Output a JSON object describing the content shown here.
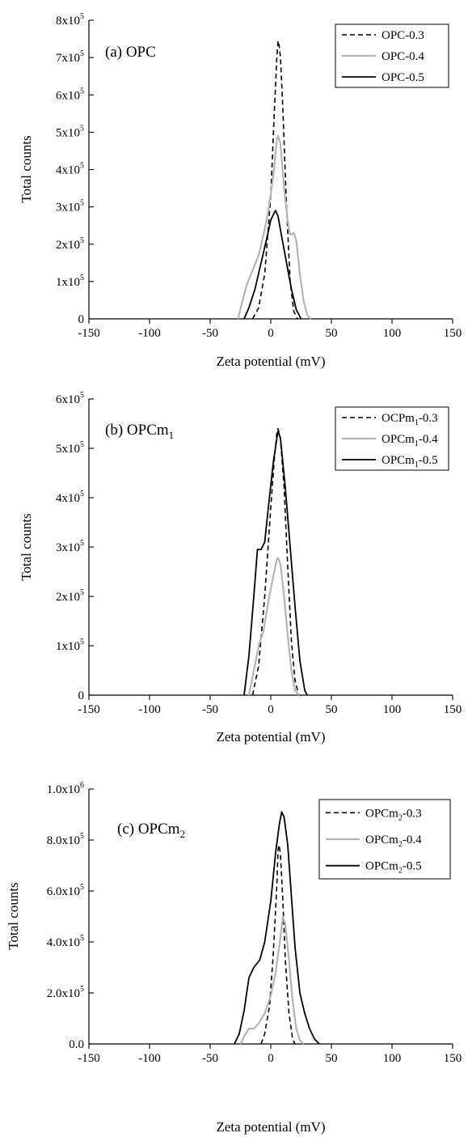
{
  "colors": {
    "dashed": "#000000",
    "gray": "#b4b4b4",
    "solid": "#000000",
    "axis": "#000000"
  },
  "chart_data": [
    {
      "type": "line",
      "panel_label": "(a) OPC",
      "panel_base": "(a) OPC",
      "panel_sub": "",
      "xlabel": "Zeta potential (mV)",
      "ylabel": "Total counts",
      "xlim": [
        -150,
        150
      ],
      "ylim": [
        0,
        800000
      ],
      "x_ticks": [
        -150,
        -100,
        -50,
        0,
        50,
        100,
        150
      ],
      "x_tick_labels": [
        "-150",
        "-100",
        "-50",
        "0",
        "50",
        "100",
        "150"
      ],
      "y_ticks": [
        0,
        100000,
        200000,
        300000,
        400000,
        500000,
        600000,
        700000,
        800000
      ],
      "y_tick_labels": [
        {
          "base": "0",
          "exp": ""
        },
        {
          "base": "1x10",
          "exp": "5"
        },
        {
          "base": "2x10",
          "exp": "5"
        },
        {
          "base": "3x10",
          "exp": "5"
        },
        {
          "base": "4x10",
          "exp": "5"
        },
        {
          "base": "5x10",
          "exp": "5"
        },
        {
          "base": "6x10",
          "exp": "5"
        },
        {
          "base": "7x10",
          "exp": "5"
        },
        {
          "base": "8x10",
          "exp": "5"
        }
      ],
      "legend_position": "top-right",
      "series": [
        {
          "name": "OPC-0.3",
          "name_base": "OPC",
          "name_sub": "",
          "name_suffix": "-0.3",
          "style": "dashed",
          "points": [
            [
              -15,
              0
            ],
            [
              -10,
              30000
            ],
            [
              -5,
              120000
            ],
            [
              0,
              330000
            ],
            [
              3,
              560000
            ],
            [
              5,
              700000
            ],
            [
              6,
              745000
            ],
            [
              7,
              730000
            ],
            [
              8,
              700000
            ],
            [
              10,
              560000
            ],
            [
              13,
              300000
            ],
            [
              16,
              100000
            ],
            [
              19,
              20000
            ],
            [
              22,
              0
            ]
          ]
        },
        {
          "name": "OPC-0.4",
          "name_base": "OPC",
          "name_sub": "",
          "name_suffix": "-0.4",
          "style": "gray",
          "points": [
            [
              -27,
              0
            ],
            [
              -24,
              40000
            ],
            [
              -20,
              90000
            ],
            [
              -15,
              130000
            ],
            [
              -10,
              170000
            ],
            [
              -5,
              240000
            ],
            [
              -2,
              290000
            ],
            [
              2,
              380000
            ],
            [
              5,
              480000
            ],
            [
              6,
              490000
            ],
            [
              8,
              470000
            ],
            [
              11,
              350000
            ],
            [
              14,
              260000
            ],
            [
              16,
              225000
            ],
            [
              19,
              230000
            ],
            [
              21,
              210000
            ],
            [
              24,
              120000
            ],
            [
              27,
              50000
            ],
            [
              30,
              10000
            ],
            [
              33,
              0
            ]
          ]
        },
        {
          "name": "OPC-0.5",
          "name_base": "OPC",
          "name_sub": "",
          "name_suffix": "-0.5",
          "style": "solid",
          "points": [
            [
              -22,
              0
            ],
            [
              -18,
              30000
            ],
            [
              -13,
              80000
            ],
            [
              -8,
              150000
            ],
            [
              -3,
              220000
            ],
            [
              0,
              265000
            ],
            [
              3,
              285000
            ],
            [
              4,
              290000
            ],
            [
              6,
              275000
            ],
            [
              9,
              220000
            ],
            [
              13,
              150000
            ],
            [
              17,
              80000
            ],
            [
              21,
              25000
            ],
            [
              25,
              0
            ]
          ]
        }
      ]
    },
    {
      "type": "line",
      "panel_label": "(b) OPCm1",
      "panel_base": "(b) OPCm",
      "panel_sub": "1",
      "xlabel": "Zeta potential (mV)",
      "ylabel": "Total counts",
      "xlim": [
        -150,
        150
      ],
      "ylim": [
        0,
        600000
      ],
      "x_ticks": [
        -150,
        -100,
        -50,
        0,
        50,
        100,
        150
      ],
      "x_tick_labels": [
        "-150",
        "-100",
        "-50",
        "0",
        "50",
        "100",
        "150"
      ],
      "y_ticks": [
        0,
        100000,
        200000,
        300000,
        400000,
        500000,
        600000
      ],
      "y_tick_labels": [
        {
          "base": "0",
          "exp": ""
        },
        {
          "base": "1x10",
          "exp": "5"
        },
        {
          "base": "2x10",
          "exp": "5"
        },
        {
          "base": "3x10",
          "exp": "5"
        },
        {
          "base": "4x10",
          "exp": "5"
        },
        {
          "base": "5x10",
          "exp": "5"
        },
        {
          "base": "6x10",
          "exp": "5"
        }
      ],
      "legend_position": "top-right",
      "series": [
        {
          "name": "OCPm1-0.3",
          "name_base": "OCPm",
          "name_sub": "1",
          "name_suffix": "-0.3",
          "style": "dashed",
          "points": [
            [
              -15,
              0
            ],
            [
              -10,
              60000
            ],
            [
              -5,
              200000
            ],
            [
              0,
              380000
            ],
            [
              3,
              480000
            ],
            [
              5,
              530000
            ],
            [
              6,
              540000
            ],
            [
              8,
              520000
            ],
            [
              11,
              420000
            ],
            [
              14,
              260000
            ],
            [
              17,
              110000
            ],
            [
              20,
              30000
            ],
            [
              23,
              0
            ]
          ]
        },
        {
          "name": "OPCm1-0.4",
          "name_base": "OPCm",
          "name_sub": "1",
          "name_suffix": "-0.4",
          "style": "gray",
          "points": [
            [
              -18,
              0
            ],
            [
              -14,
              50000
            ],
            [
              -10,
              100000
            ],
            [
              -6,
              130000
            ],
            [
              -2,
              190000
            ],
            [
              2,
              240000
            ],
            [
              5,
              275000
            ],
            [
              6,
              278000
            ],
            [
              8,
              265000
            ],
            [
              11,
              200000
            ],
            [
              14,
              120000
            ],
            [
              17,
              50000
            ],
            [
              20,
              10000
            ],
            [
              23,
              0
            ]
          ]
        },
        {
          "name": "OPCm1-0.5",
          "name_base": "OPCm",
          "name_sub": "1",
          "name_suffix": "-0.5",
          "style": "solid",
          "points": [
            [
              -22,
              0
            ],
            [
              -18,
              80000
            ],
            [
              -14,
              200000
            ],
            [
              -11,
              295000
            ],
            [
              -8,
              295000
            ],
            [
              -5,
              310000
            ],
            [
              -2,
              380000
            ],
            [
              2,
              470000
            ],
            [
              5,
              520000
            ],
            [
              6,
              535000
            ],
            [
              8,
              520000
            ],
            [
              12,
              420000
            ],
            [
              16,
              300000
            ],
            [
              20,
              180000
            ],
            [
              24,
              70000
            ],
            [
              28,
              10000
            ],
            [
              30,
              0
            ]
          ]
        }
      ]
    },
    {
      "type": "line",
      "panel_label": "(c) OPCm2",
      "panel_base": "(c) OPCm",
      "panel_sub": "2",
      "xlabel": "Zeta potential (mV)",
      "ylabel": "Total counts",
      "xlim": [
        -150,
        150
      ],
      "ylim": [
        0,
        1000000
      ],
      "x_ticks": [
        -150,
        -100,
        -50,
        0,
        50,
        100,
        150
      ],
      "x_tick_labels": [
        "-150",
        "-100",
        "-50",
        "0",
        "50",
        "100",
        "150"
      ],
      "y_ticks": [
        0,
        200000,
        400000,
        600000,
        800000,
        1000000
      ],
      "y_tick_labels": [
        {
          "base": "0.0",
          "exp": ""
        },
        {
          "base": "2.0x10",
          "exp": "5"
        },
        {
          "base": "4.0x10",
          "exp": "5"
        },
        {
          "base": "6.0x10",
          "exp": "5"
        },
        {
          "base": "8.0x10",
          "exp": "5"
        },
        {
          "base": "1.0x10",
          "exp": "6"
        }
      ],
      "legend_position": "top-right",
      "series": [
        {
          "name": "OPCm2-0.3",
          "name_base": "OPCm",
          "name_sub": "2",
          "name_suffix": "-0.3",
          "style": "dashed",
          "points": [
            [
              -8,
              0
            ],
            [
              -5,
              40000
            ],
            [
              -1,
              150000
            ],
            [
              2,
              350000
            ],
            [
              5,
              620000
            ],
            [
              6,
              760000
            ],
            [
              7,
              780000
            ],
            [
              8,
              740000
            ],
            [
              10,
              560000
            ],
            [
              12,
              330000
            ],
            [
              15,
              120000
            ],
            [
              18,
              20000
            ],
            [
              20,
              0
            ]
          ]
        },
        {
          "name": "OPCm2-0.4",
          "name_base": "OPCm",
          "name_sub": "2",
          "name_suffix": "-0.4",
          "style": "gray",
          "points": [
            [
              -25,
              0
            ],
            [
              -22,
              30000
            ],
            [
              -18,
              60000
            ],
            [
              -14,
              60000
            ],
            [
              -10,
              80000
            ],
            [
              -5,
              120000
            ],
            [
              0,
              190000
            ],
            [
              4,
              280000
            ],
            [
              8,
              420000
            ],
            [
              10,
              500000
            ],
            [
              12,
              470000
            ],
            [
              15,
              330000
            ],
            [
              18,
              170000
            ],
            [
              21,
              60000
            ],
            [
              24,
              15000
            ],
            [
              27,
              0
            ]
          ]
        },
        {
          "name": "OPCm2-0.5",
          "name_base": "OPCm",
          "name_sub": "2",
          "name_suffix": "-0.5",
          "style": "solid",
          "points": [
            [
              -30,
              0
            ],
            [
              -26,
              40000
            ],
            [
              -22,
              130000
            ],
            [
              -18,
              260000
            ],
            [
              -14,
              300000
            ],
            [
              -9,
              330000
            ],
            [
              -5,
              400000
            ],
            [
              0,
              560000
            ],
            [
              4,
              750000
            ],
            [
              7,
              860000
            ],
            [
              9,
              910000
            ],
            [
              11,
              890000
            ],
            [
              14,
              780000
            ],
            [
              17,
              580000
            ],
            [
              20,
              380000
            ],
            [
              24,
              200000
            ],
            [
              28,
              120000
            ],
            [
              32,
              60000
            ],
            [
              36,
              20000
            ],
            [
              40,
              0
            ]
          ]
        }
      ]
    }
  ]
}
